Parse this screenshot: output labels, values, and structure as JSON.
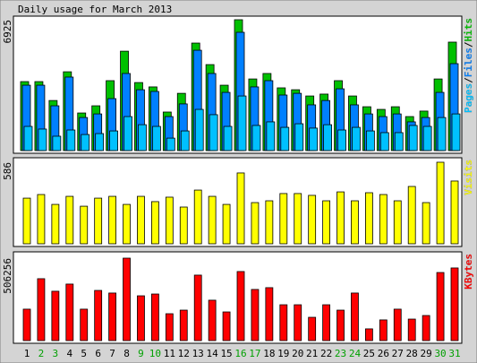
{
  "chart_data": [
    {
      "type": "bar",
      "title": "Daily usage for March 2013",
      "ylim": [
        0,
        6925
      ],
      "yticks": [
        6925
      ],
      "legend_separator": "/",
      "series": [
        {
          "name": "Hits",
          "color": "#00c000",
          "values": [
            3650,
            3650,
            2650,
            4170,
            1990,
            2370,
            3700,
            5260,
            3600,
            3370,
            2040,
            3030,
            5690,
            4550,
            3460,
            6925,
            3790,
            4080,
            3320,
            3220,
            2890,
            2990,
            3700,
            2890,
            2320,
            2180,
            2320,
            1800,
            2090,
            3790,
            5740
          ]
        },
        {
          "name": "Files",
          "color": "#0080ff",
          "values": [
            3460,
            3460,
            2370,
            3890,
            1750,
            1940,
            2750,
            4080,
            3220,
            3130,
            1800,
            2470,
            5310,
            4080,
            3080,
            6260,
            3370,
            3700,
            2940,
            3030,
            2420,
            2650,
            3270,
            2420,
            1940,
            1800,
            1940,
            1520,
            1750,
            3080,
            4600
          ]
        },
        {
          "name": "Pages",
          "color": "#00c0ff",
          "values": [
            1280,
            1140,
            760,
            1090,
            850,
            900,
            1040,
            1800,
            1370,
            1280,
            660,
            1040,
            2180,
            1900,
            1280,
            2890,
            1330,
            1520,
            1230,
            1420,
            1190,
            1370,
            1090,
            1230,
            1040,
            950,
            950,
            1330,
            1280,
            1750,
            1940
          ]
        }
      ]
    },
    {
      "type": "bar",
      "ylim": [
        0,
        586
      ],
      "yticks": [
        586
      ],
      "series": [
        {
          "name": "Visits",
          "color": "#ffff00",
          "values": [
            328,
            354,
            283,
            341,
            270,
            328,
            341,
            283,
            341,
            303,
            335,
            264,
            386,
            341,
            283,
            509,
            296,
            309,
            361,
            361,
            348,
            309,
            373,
            309,
            367,
            354,
            309,
            412,
            296,
            586,
            451
          ]
        }
      ]
    },
    {
      "type": "bar",
      "ylim": [
        0,
        506256
      ],
      "yticks": [
        506256
      ],
      "categories": [
        "1",
        "2",
        "3",
        "4",
        "5",
        "6",
        "7",
        "8",
        "9",
        "10",
        "11",
        "12",
        "13",
        "14",
        "15",
        "16",
        "17",
        "18",
        "19",
        "20",
        "21",
        "22",
        "23",
        "24",
        "25",
        "26",
        "27",
        "28",
        "29",
        "30",
        "31"
      ],
      "category_colors": [
        "#000000",
        "#00a000",
        "#00a000",
        "#000000",
        "#000000",
        "#000000",
        "#000000",
        "#000000",
        "#00a000",
        "#00a000",
        "#000000",
        "#000000",
        "#000000",
        "#000000",
        "#000000",
        "#00a000",
        "#00a000",
        "#000000",
        "#000000",
        "#000000",
        "#000000",
        "#000000",
        "#00a000",
        "#00a000",
        "#000000",
        "#000000",
        "#000000",
        "#000000",
        "#000000",
        "#00a000",
        "#00a000"
      ],
      "series": [
        {
          "name": "KBytes",
          "color": "#ff0000",
          "values": [
            193000,
            380000,
            303000,
            347000,
            193000,
            308000,
            292000,
            506256,
            275000,
            286000,
            165000,
            187000,
            402000,
            248000,
            176000,
            424000,
            314000,
            325000,
            220000,
            220000,
            143000,
            220000,
            187000,
            292000,
            72000,
            127000,
            193000,
            132000,
            154000,
            418000,
            446000
          ]
        }
      ]
    }
  ]
}
